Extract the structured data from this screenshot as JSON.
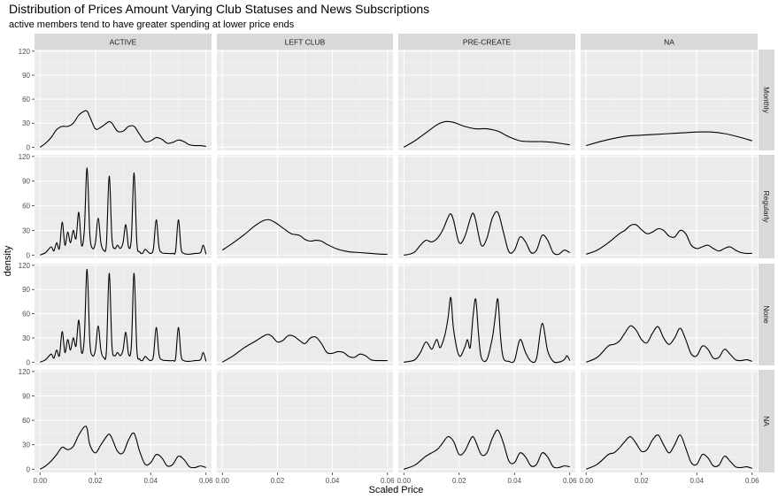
{
  "chart_data": {
    "type": "line",
    "title": "Distribution of Prices Amount Varying Club Statuses and News Subscriptions",
    "subtitle": "active members tend to have greater spending at lower price ends",
    "xlabel": "Scaled Price",
    "ylabel": "density",
    "xlim": [
      -0.002,
      0.062
    ],
    "ylim": [
      -4,
      122
    ],
    "x_ticks": [
      "0.00",
      "0.02",
      "0.04",
      "0.06"
    ],
    "y_ticks": [
      "0",
      "30",
      "60",
      "90",
      "120"
    ],
    "grid": true,
    "column_facets": [
      "ACTIVE",
      "LEFT CLUB",
      "PRE-CREATE",
      "NA"
    ],
    "row_facets": [
      "Monthly",
      "Regularly",
      "None",
      "NA"
    ],
    "panels": [
      [
        {
          "x": [
            0,
            0.002,
            0.004,
            0.006,
            0.008,
            0.01,
            0.012,
            0.014,
            0.016,
            0.017,
            0.018,
            0.02,
            0.022,
            0.024,
            0.025,
            0.026,
            0.028,
            0.03,
            0.032,
            0.034,
            0.036,
            0.038,
            0.04,
            0.042,
            0.044,
            0.046,
            0.048,
            0.05,
            0.052,
            0.054,
            0.056,
            0.058,
            0.06
          ],
          "y": [
            0,
            5,
            12,
            22,
            26,
            26,
            30,
            40,
            45,
            45,
            38,
            23,
            25,
            30,
            32,
            30,
            20,
            20,
            26,
            26,
            16,
            7,
            8,
            12,
            10,
            5,
            6,
            9,
            7,
            3,
            2,
            2,
            1
          ]
        },
        null,
        {
          "x": [
            0,
            0.004,
            0.008,
            0.012,
            0.015,
            0.018,
            0.022,
            0.026,
            0.03,
            0.034,
            0.038,
            0.042,
            0.046,
            0.05,
            0.054,
            0.058,
            0.06
          ],
          "y": [
            0,
            8,
            18,
            28,
            32,
            31,
            26,
            23,
            23,
            20,
            13,
            8,
            7,
            7,
            6,
            4,
            3
          ]
        },
        {
          "x": [
            0,
            0.005,
            0.01,
            0.015,
            0.02,
            0.025,
            0.03,
            0.035,
            0.04,
            0.045,
            0.05,
            0.055,
            0.06
          ],
          "y": [
            2,
            7,
            11,
            14,
            15,
            16,
            17,
            18,
            19,
            19,
            17,
            13,
            8
          ]
        }
      ],
      [
        {
          "x": [
            0,
            0.002,
            0.004,
            0.005,
            0.006,
            0.007,
            0.008,
            0.009,
            0.01,
            0.011,
            0.012,
            0.013,
            0.014,
            0.015,
            0.016,
            0.017,
            0.018,
            0.019,
            0.02,
            0.021,
            0.022,
            0.023,
            0.024,
            0.025,
            0.026,
            0.027,
            0.028,
            0.029,
            0.03,
            0.031,
            0.032,
            0.033,
            0.034,
            0.035,
            0.036,
            0.037,
            0.038,
            0.039,
            0.04,
            0.041,
            0.042,
            0.043,
            0.044,
            0.046,
            0.048,
            0.049,
            0.05,
            0.051,
            0.052,
            0.054,
            0.056,
            0.058,
            0.059,
            0.06
          ],
          "y": [
            0,
            3,
            10,
            5,
            15,
            8,
            40,
            12,
            28,
            15,
            30,
            20,
            52,
            12,
            30,
            106,
            25,
            8,
            15,
            45,
            15,
            6,
            14,
            96,
            20,
            8,
            12,
            8,
            15,
            37,
            10,
            20,
            100,
            15,
            4,
            2,
            7,
            4,
            2,
            8,
            43,
            10,
            3,
            2,
            2,
            5,
            43,
            8,
            2,
            1,
            2,
            3,
            12,
            1
          ]
        },
        {
          "x": [
            0,
            0.004,
            0.008,
            0.012,
            0.015,
            0.017,
            0.019,
            0.022,
            0.025,
            0.028,
            0.03,
            0.032,
            0.034,
            0.036,
            0.038,
            0.042,
            0.046,
            0.05,
            0.054,
            0.058,
            0.06
          ],
          "y": [
            6,
            15,
            25,
            36,
            42,
            43,
            40,
            33,
            26,
            24,
            19,
            17,
            18,
            17,
            13,
            7,
            4,
            3,
            2,
            1,
            1
          ]
        },
        {
          "x": [
            0,
            0.002,
            0.004,
            0.006,
            0.008,
            0.01,
            0.012,
            0.014,
            0.016,
            0.017,
            0.018,
            0.02,
            0.022,
            0.024,
            0.025,
            0.026,
            0.028,
            0.03,
            0.032,
            0.034,
            0.036,
            0.038,
            0.04,
            0.042,
            0.044,
            0.046,
            0.048,
            0.05,
            0.052,
            0.054,
            0.056,
            0.058,
            0.06
          ],
          "y": [
            0,
            1,
            4,
            12,
            18,
            16,
            20,
            30,
            46,
            50,
            42,
            15,
            22,
            44,
            51,
            42,
            12,
            20,
            45,
            52,
            28,
            4,
            6,
            22,
            16,
            3,
            6,
            24,
            18,
            3,
            1,
            6,
            3
          ]
        },
        {
          "x": [
            0,
            0.004,
            0.008,
            0.012,
            0.014,
            0.016,
            0.018,
            0.02,
            0.022,
            0.024,
            0.026,
            0.028,
            0.03,
            0.032,
            0.034,
            0.036,
            0.038,
            0.04,
            0.042,
            0.044,
            0.046,
            0.048,
            0.05,
            0.052,
            0.054,
            0.056,
            0.058,
            0.06
          ],
          "y": [
            1,
            6,
            15,
            26,
            30,
            36,
            37,
            31,
            26,
            28,
            32,
            30,
            23,
            22,
            30,
            26,
            12,
            8,
            10,
            12,
            8,
            5,
            8,
            10,
            6,
            3,
            2,
            2
          ]
        }
      ],
      [
        {
          "x": [
            0,
            0.002,
            0.004,
            0.005,
            0.006,
            0.007,
            0.008,
            0.009,
            0.01,
            0.011,
            0.012,
            0.013,
            0.014,
            0.015,
            0.016,
            0.017,
            0.018,
            0.019,
            0.02,
            0.021,
            0.022,
            0.023,
            0.024,
            0.025,
            0.026,
            0.027,
            0.028,
            0.029,
            0.03,
            0.031,
            0.032,
            0.033,
            0.034,
            0.035,
            0.036,
            0.037,
            0.038,
            0.039,
            0.04,
            0.041,
            0.042,
            0.043,
            0.044,
            0.046,
            0.048,
            0.049,
            0.05,
            0.051,
            0.052,
            0.054,
            0.056,
            0.058,
            0.059,
            0.06
          ],
          "y": [
            0,
            3,
            10,
            5,
            15,
            8,
            38,
            12,
            28,
            15,
            30,
            20,
            52,
            12,
            30,
            115,
            25,
            8,
            15,
            45,
            15,
            6,
            14,
            110,
            20,
            8,
            12,
            8,
            15,
            37,
            10,
            20,
            110,
            15,
            4,
            2,
            7,
            4,
            2,
            8,
            43,
            10,
            3,
            2,
            2,
            5,
            43,
            8,
            2,
            1,
            2,
            3,
            12,
            1
          ]
        },
        {
          "x": [
            0,
            0.004,
            0.008,
            0.012,
            0.016,
            0.018,
            0.02,
            0.022,
            0.024,
            0.026,
            0.028,
            0.03,
            0.032,
            0.034,
            0.036,
            0.038,
            0.04,
            0.042,
            0.044,
            0.046,
            0.048,
            0.05,
            0.052,
            0.054,
            0.056,
            0.058,
            0.06
          ],
          "y": [
            0,
            8,
            18,
            26,
            34,
            32,
            25,
            27,
            33,
            32,
            27,
            23,
            30,
            31,
            23,
            12,
            11,
            13,
            12,
            7,
            6,
            10,
            8,
            3,
            2,
            2,
            2
          ]
        },
        {
          "x": [
            0,
            0.002,
            0.004,
            0.006,
            0.008,
            0.01,
            0.011,
            0.012,
            0.013,
            0.014,
            0.015,
            0.016,
            0.017,
            0.018,
            0.02,
            0.022,
            0.023,
            0.024,
            0.025,
            0.026,
            0.027,
            0.028,
            0.03,
            0.032,
            0.033,
            0.034,
            0.035,
            0.036,
            0.038,
            0.04,
            0.042,
            0.044,
            0.046,
            0.048,
            0.05,
            0.052,
            0.054,
            0.056,
            0.058,
            0.059,
            0.06
          ],
          "y": [
            0,
            1,
            3,
            12,
            25,
            16,
            22,
            28,
            18,
            24,
            36,
            55,
            80,
            40,
            8,
            18,
            28,
            18,
            56,
            78,
            35,
            6,
            3,
            30,
            55,
            78,
            30,
            5,
            1,
            2,
            28,
            12,
            1,
            5,
            48,
            14,
            1,
            0,
            3,
            8,
            2
          ]
        },
        {
          "x": [
            0,
            0.004,
            0.008,
            0.01,
            0.012,
            0.014,
            0.016,
            0.018,
            0.02,
            0.022,
            0.024,
            0.026,
            0.028,
            0.03,
            0.032,
            0.034,
            0.036,
            0.038,
            0.04,
            0.042,
            0.044,
            0.046,
            0.048,
            0.05,
            0.052,
            0.054,
            0.056,
            0.058,
            0.06
          ],
          "y": [
            0,
            6,
            20,
            22,
            26,
            36,
            45,
            40,
            28,
            24,
            36,
            44,
            30,
            22,
            30,
            42,
            28,
            10,
            8,
            20,
            16,
            5,
            6,
            16,
            10,
            3,
            2,
            3,
            1
          ]
        }
      ],
      [
        {
          "x": [
            0,
            0.002,
            0.004,
            0.006,
            0.008,
            0.01,
            0.012,
            0.014,
            0.016,
            0.017,
            0.018,
            0.02,
            0.022,
            0.024,
            0.025,
            0.026,
            0.028,
            0.03,
            0.032,
            0.034,
            0.036,
            0.038,
            0.04,
            0.042,
            0.044,
            0.046,
            0.048,
            0.05,
            0.052,
            0.054,
            0.056,
            0.058,
            0.06
          ],
          "y": [
            0,
            4,
            10,
            18,
            27,
            24,
            28,
            42,
            52,
            50,
            30,
            20,
            30,
            40,
            43,
            38,
            22,
            20,
            36,
            44,
            22,
            6,
            8,
            18,
            14,
            4,
            6,
            16,
            12,
            3,
            2,
            4,
            2
          ]
        },
        null,
        {
          "x": [
            0,
            0.004,
            0.008,
            0.012,
            0.014,
            0.016,
            0.018,
            0.02,
            0.022,
            0.024,
            0.025,
            0.026,
            0.028,
            0.03,
            0.032,
            0.034,
            0.036,
            0.038,
            0.04,
            0.042,
            0.044,
            0.046,
            0.048,
            0.05,
            0.052,
            0.054,
            0.056,
            0.058,
            0.06
          ],
          "y": [
            0,
            5,
            16,
            24,
            32,
            40,
            34,
            18,
            22,
            36,
            40,
            34,
            18,
            20,
            38,
            48,
            32,
            10,
            8,
            20,
            15,
            4,
            6,
            20,
            15,
            3,
            2,
            4,
            3
          ]
        },
        {
          "x": [
            0,
            0.004,
            0.008,
            0.01,
            0.012,
            0.014,
            0.016,
            0.018,
            0.02,
            0.022,
            0.024,
            0.026,
            0.028,
            0.03,
            0.032,
            0.034,
            0.036,
            0.038,
            0.04,
            0.042,
            0.044,
            0.046,
            0.048,
            0.05,
            0.052,
            0.054,
            0.056,
            0.058,
            0.06
          ],
          "y": [
            0,
            6,
            18,
            20,
            26,
            34,
            40,
            32,
            22,
            24,
            36,
            42,
            30,
            20,
            30,
            42,
            26,
            8,
            6,
            18,
            14,
            4,
            5,
            16,
            10,
            3,
            2,
            3,
            1
          ]
        }
      ]
    ]
  },
  "colors": {
    "panel_background": "#ebebeb",
    "strip_background": "#d9d9d9",
    "grid_major": "#ffffff",
    "line": "#000000",
    "text_dark": "#1a1a1a",
    "axis_text": "#4d4d4d"
  }
}
